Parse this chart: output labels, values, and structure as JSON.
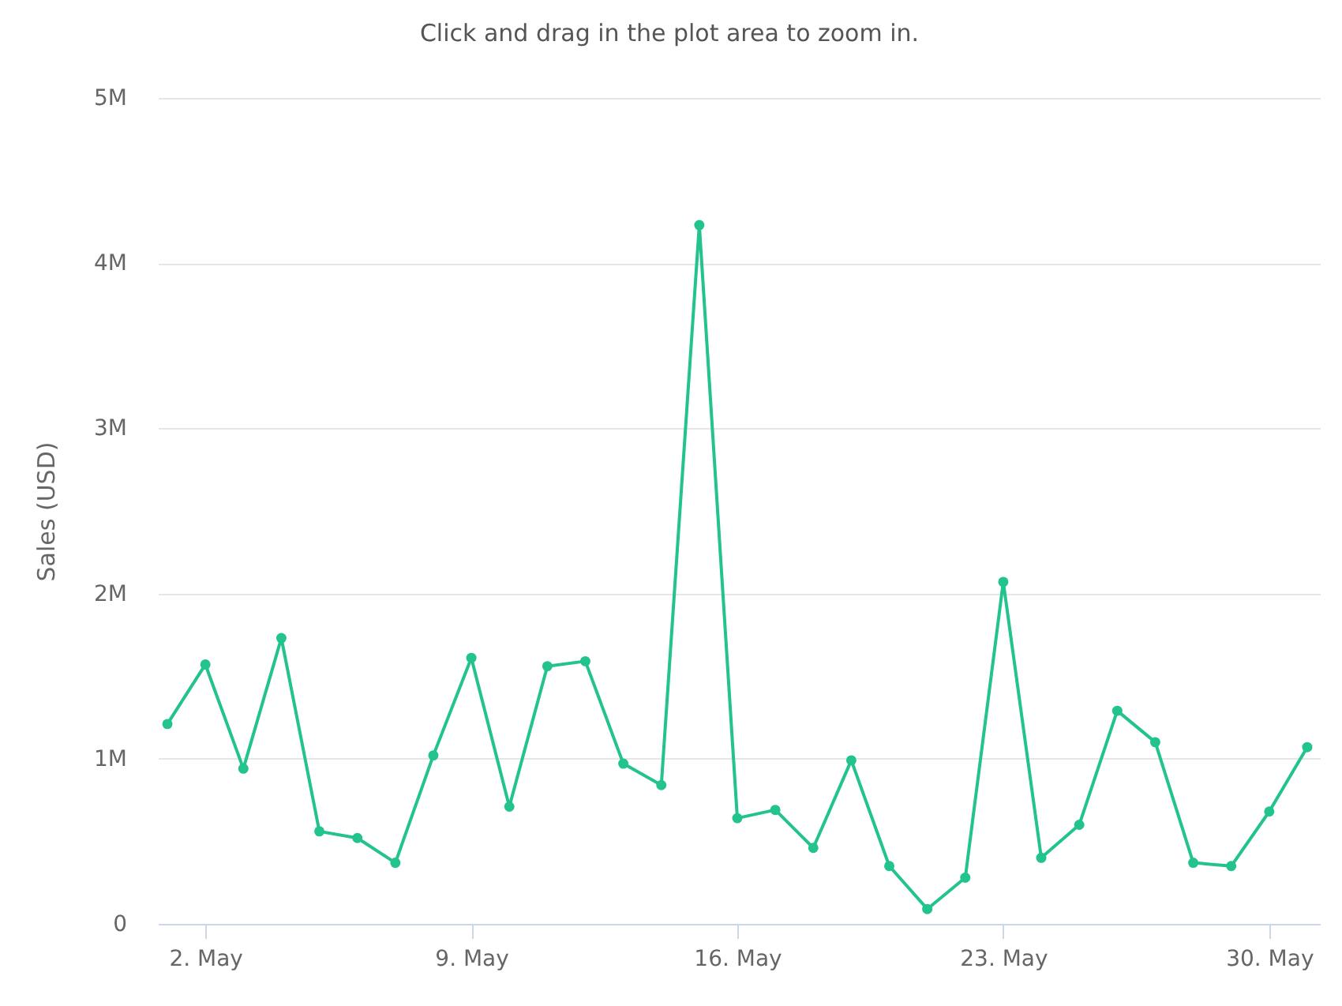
{
  "chart_data": {
    "type": "line",
    "title": "Click and drag in the plot area to zoom in.",
    "ylabel": "Sales (USD)",
    "x": [
      "--05-01",
      "--05-02",
      "--05-03",
      "--05-04",
      "--05-05",
      "--05-06",
      "--05-07",
      "--05-08",
      "--05-09",
      "--05-10",
      "--05-11",
      "--05-12",
      "--05-13",
      "--05-14",
      "--05-15",
      "--05-16",
      "--05-17",
      "--05-18",
      "--05-19",
      "--05-20",
      "--05-21",
      "--05-22",
      "--05-23",
      "--05-24",
      "--05-25",
      "--05-26",
      "--05-27",
      "--05-28",
      "--05-29",
      "--05-30",
      "--05-31"
    ],
    "series": [
      {
        "color": "#22c38c",
        "values": [
          1210000,
          1570000,
          940000,
          1730000,
          560000,
          520000,
          370000,
          1020000,
          1610000,
          710000,
          1560000,
          1590000,
          970000,
          840000,
          4230000,
          640000,
          690000,
          460000,
          990000,
          350000,
          90000,
          280000,
          2070000,
          400000,
          600000,
          1290000,
          1100000,
          370000,
          350000,
          680000,
          1070000
        ]
      }
    ],
    "xlim": [
      "--04-30T18:00",
      "--05-31T08:00"
    ],
    "xticks": [
      {
        "value": "--05-02",
        "label": "2. May"
      },
      {
        "value": "--05-09",
        "label": "9. May"
      },
      {
        "value": "--05-16",
        "label": "16. May"
      },
      {
        "value": "--05-23",
        "label": "23. May"
      },
      {
        "value": "--05-30",
        "label": "30. May"
      }
    ],
    "ylim": [
      0,
      5000000
    ],
    "yticks": [
      0,
      {
        "value": 1000000,
        "label": "1M"
      },
      {
        "value": 2000000,
        "label": "2M"
      },
      {
        "value": 3000000,
        "label": "3M"
      },
      {
        "value": 4000000,
        "label": "4M"
      },
      {
        "value": 5000000,
        "label": "5M"
      }
    ],
    "grid": "y",
    "marker": "circle"
  }
}
